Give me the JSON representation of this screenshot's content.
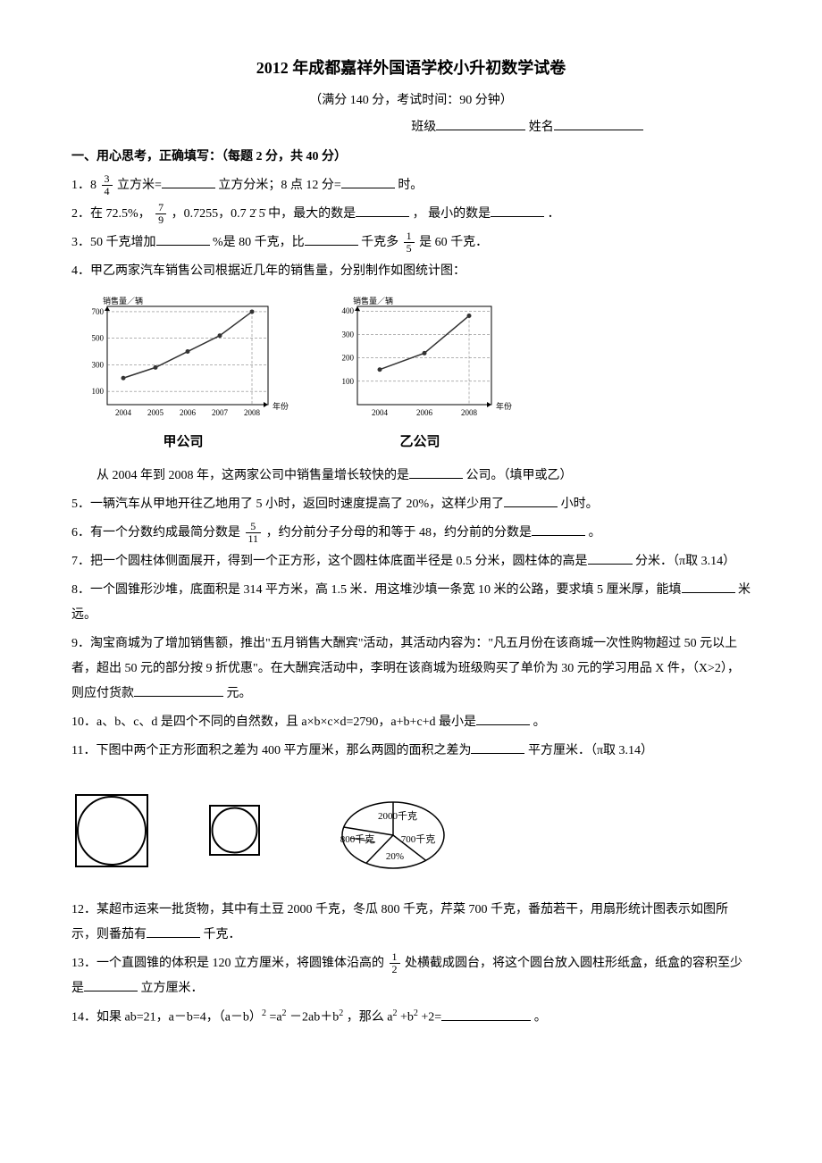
{
  "title": "2012 年成都嘉祥外国语学校小升初数学试卷",
  "subtitle": "（满分 140 分，考试时间：90 分钟）",
  "class_label": "班级",
  "name_label": "姓名",
  "section1": "一、用心思考，正确填写：（每题 2 分，共 40 分）",
  "q1_a": "1．8",
  "q1_frac_num": "3",
  "q1_frac_den": "4",
  "q1_b": "立方米=",
  "q1_c": "立方分米；8 点 12 分=",
  "q1_d": "时。",
  "q2_a": "2．在 72.5%，",
  "q2_frac_num": "7",
  "q2_frac_den": "9",
  "q2_b": "，0.7255，0.7 2̇ 5̇ 中，最大的数是",
  "q2_c": "， 最小的数是",
  "q2_d": "．",
  "q3_a": "3．50 千克增加",
  "q3_b": "%是 80 千克，比",
  "q3_c": "千克多",
  "q3_frac_num": "1",
  "q3_frac_den": "5",
  "q3_d": "是 60 千克．",
  "q4": "4．甲乙两家汽车销售公司根据近几年的销售量，分别制作如图统计图：",
  "chart_a": {
    "ylabel": "销售量／辆",
    "xlabel": "年份",
    "years": [
      "2004",
      "2005",
      "2006",
      "2007",
      "2008"
    ],
    "yticks": [
      100,
      300,
      500,
      700
    ],
    "values": [
      200,
      280,
      400,
      520,
      700
    ],
    "company_label": "甲公司",
    "color": "#333333",
    "grid_color": "#666666"
  },
  "chart_b": {
    "ylabel": "销售量／辆",
    "xlabel": "年份",
    "years": [
      "2004",
      "2006",
      "2008"
    ],
    "yticks": [
      100,
      200,
      300,
      400
    ],
    "values": [
      150,
      220,
      380
    ],
    "company_label": "乙公司",
    "color": "#333333",
    "grid_color": "#666666"
  },
  "q4_b": "从 2004 年到 2008 年，这两家公司中销售量增长较快的是",
  "q4_c": "公司。（填甲或乙）",
  "q5_a": "5．一辆汽车从甲地开往乙地用了 5 小时，返回时速度提高了 20%，这样少用了",
  "q5_b": "小时。",
  "q6_a": "6．有一个分数约成最简分数是",
  "q6_frac_num": "5",
  "q6_frac_den": "11",
  "q6_b": "，约分前分子分母的和等于 48，约分前的分数是",
  "q6_c": "。",
  "q7_a": "7．把一个圆柱体侧面展开，得到一个正方形，这个圆柱体底面半径是 0.5 分米，圆柱体的高是",
  "q7_b": "分米．（π取 3.14）",
  "q8_a": "8．一个圆锥形沙堆，底面积是 314 平方米，高 1.5 米．用这堆沙填一条宽 10 米的公路，要求填 5 厘米厚，能填",
  "q8_b": "米远。",
  "q9_a": "9．淘宝商城为了增加销售额，推出\"五月销售大酬宾\"活动，其活动内容为：\"凡五月份在该商城一次性购物超过 50 元以上者，超出 50 元的部分按 9 折优惠\"。在大酬宾活动中，李明在该商城为班级购买了单价为 30 元的学习用品 X 件，（X>2），则应付货款",
  "q9_b": "元。",
  "q10_a": "10．a、b、c、d 是四个不同的自然数，且 a×b×c×d=2790，a+b+c+d 最小是",
  "q10_b": "。",
  "q11_a": "11．下图中两个正方形面积之差为 400 平方厘米，那么两圆的面积之差为",
  "q11_b": "平方厘米．（π取 3.14）",
  "pie": {
    "labels": [
      "2000千克",
      "700千克",
      "20%",
      "800千克"
    ],
    "colors": [
      "#ffffff",
      "#ffffff",
      "#ffffff",
      "#ffffff"
    ],
    "border": "#000000"
  },
  "q12_a": "12．某超市运来一批货物，其中有土豆 2000 千克，冬瓜 800 千克，芹菜 700 千克，番茄若干，用扇形统计图表示如图所示，则番茄有",
  "q12_b": "千克．",
  "q13_a": "13．一个直圆锥的体积是 120 立方厘米，将圆锥体沿高的",
  "q13_frac_num": "1",
  "q13_frac_den": "2",
  "q13_b": "处横截成圆台，将这个圆台放入圆柱形纸盒，纸盒的容积至少是",
  "q13_c": "立方厘米．",
  "q14_a": "14．如果 ab=21，a－b=4，（a－b）",
  "q14_b": "=a",
  "q14_c": "－2ab＋b",
  "q14_d": "，那么 a",
  "q14_e": "+b",
  "q14_f": "+2=",
  "q14_g": "。"
}
